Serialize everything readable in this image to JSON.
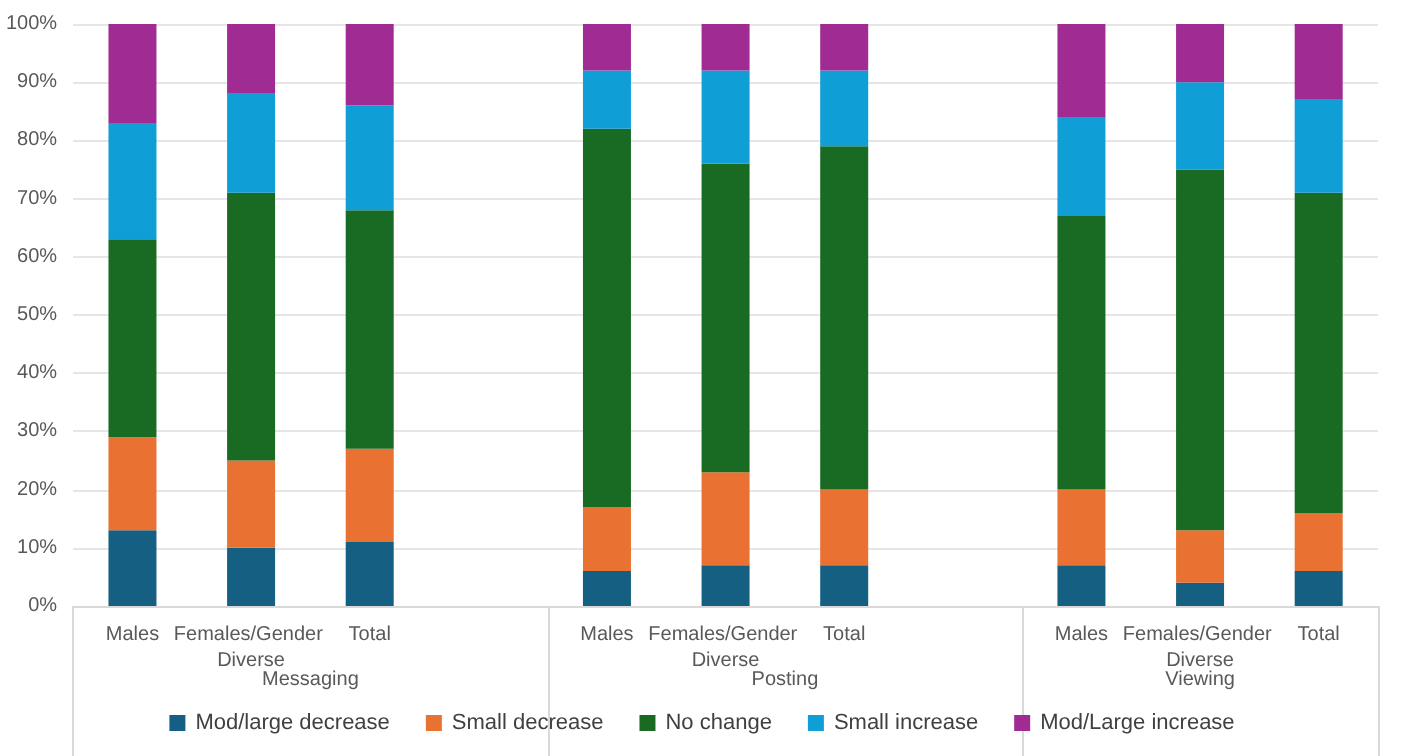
{
  "chart_data": {
    "type": "bar",
    "stacked": true,
    "categories": [
      "Males",
      "Females/Gender Diverse",
      "Total",
      null,
      "Males",
      "Females/Gender Diverse",
      "Total",
      null,
      "Males",
      "Females/Gender Diverse",
      "Total"
    ],
    "series": [
      {
        "name": "Mod/large decrease",
        "color": "#156082",
        "values": [
          13,
          10,
          11,
          null,
          6,
          7,
          7,
          null,
          7,
          4,
          6
        ]
      },
      {
        "name": "Small decrease",
        "color": "#e97132",
        "values": [
          16,
          15,
          16,
          null,
          11,
          16,
          13,
          null,
          13,
          9,
          10
        ]
      },
      {
        "name": "No change",
        "color": "#196b24",
        "values": [
          34,
          46,
          41,
          null,
          65,
          53,
          59,
          null,
          47,
          62,
          55
        ]
      },
      {
        "name": "Small increase",
        "color": "#0f9ed5",
        "values": [
          20,
          17,
          18,
          null,
          10,
          16,
          13,
          null,
          17,
          15,
          16
        ]
      },
      {
        "name": "Mod/Large increase",
        "color": "#a02b93",
        "values": [
          17,
          12,
          14,
          null,
          8,
          8,
          8,
          null,
          16,
          10,
          13
        ]
      }
    ],
    "annotations": [
      "Messaging",
      "Posting",
      "Viewing"
    ],
    "ylim": [
      0,
      100
    ],
    "yticks": [
      {
        "value": 0,
        "label": "0%"
      },
      {
        "value": 10,
        "label": "10%"
      },
      {
        "value": 20,
        "label": "20%"
      },
      {
        "value": 30,
        "label": "30%"
      },
      {
        "value": 40,
        "label": "40%"
      },
      {
        "value": 50,
        "label": "50%"
      },
      {
        "value": 60,
        "label": "60%"
      },
      {
        "value": 70,
        "label": "70%"
      },
      {
        "value": 80,
        "label": "80%"
      },
      {
        "value": 90,
        "label": "90%"
      },
      {
        "value": 100,
        "label": "100%"
      }
    ],
    "grid": "y",
    "legend": "bottom"
  }
}
